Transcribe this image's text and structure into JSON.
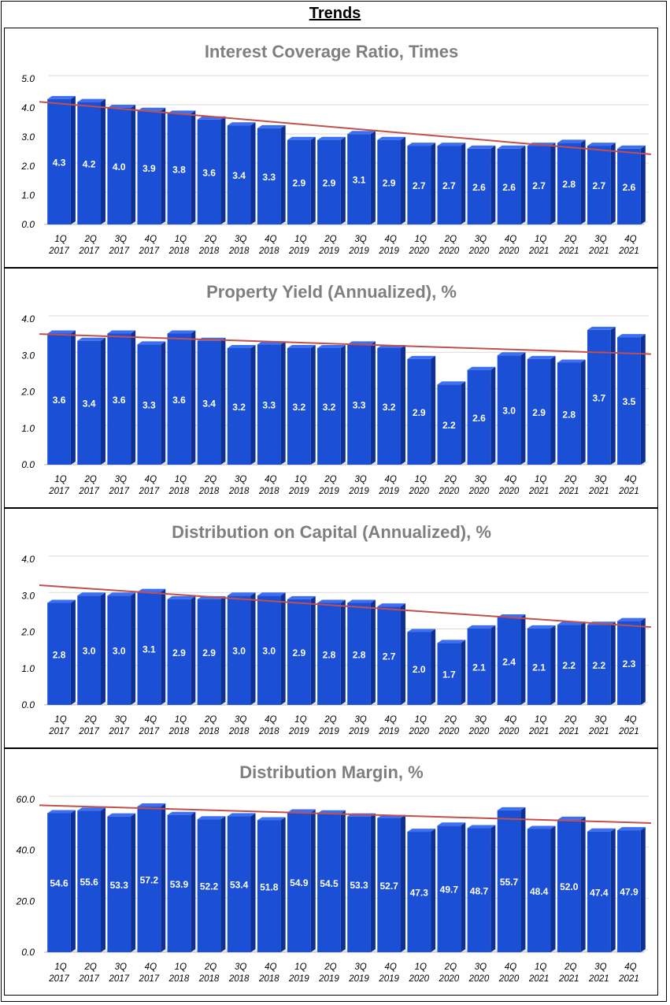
{
  "page": {
    "title": "Trends"
  },
  "colors": {
    "bar_front": "#1a4fd6",
    "bar_side": "#0e2f94",
    "bar_top": "#3d6ff0",
    "trend": "#c0504d",
    "grid": "#d9d9d9",
    "floor": "#e6e6e6",
    "title": "#7f7f7f"
  },
  "chart_data": [
    {
      "type": "bar",
      "title": "Interest Coverage Ratio, Times",
      "categories": [
        "1Q 2017",
        "2Q 2017",
        "3Q 2017",
        "4Q 2017",
        "1Q 2018",
        "2Q 2018",
        "3Q 2018",
        "4Q 2018",
        "1Q 2019",
        "2Q 2019",
        "3Q 2019",
        "4Q 2019",
        "1Q 2020",
        "2Q 2020",
        "3Q 2020",
        "4Q 2020",
        "1Q 2021",
        "2Q 2021",
        "3Q 2021",
        "4Q 2021"
      ],
      "values": [
        4.3,
        4.2,
        4.0,
        3.9,
        3.8,
        3.6,
        3.4,
        3.3,
        2.9,
        2.9,
        3.1,
        2.9,
        2.7,
        2.7,
        2.6,
        2.6,
        2.7,
        2.8,
        2.7,
        2.6
      ],
      "labels": [
        "4.3",
        "4.2",
        "4.0",
        "3.9",
        "3.8",
        "3.6",
        "3.4",
        "3.3",
        "2.9",
        "2.9",
        "3.1",
        "2.9",
        "2.7",
        "2.7",
        "2.6",
        "2.6",
        "2.7",
        "2.8",
        "2.7",
        "2.6"
      ],
      "yticks": [
        "0.0",
        "1.0",
        "2.0",
        "3.0",
        "4.0",
        "5.0"
      ],
      "ylim": [
        0,
        5
      ],
      "trendline": [
        4.1,
        2.3
      ],
      "grid": true,
      "xlabel": "",
      "ylabel": ""
    },
    {
      "type": "bar",
      "title": "Property Yield (Annualized), %",
      "categories": [
        "1Q 2017",
        "2Q 2017",
        "3Q 2017",
        "4Q 2017",
        "1Q 2018",
        "2Q 2018",
        "3Q 2018",
        "4Q 2018",
        "1Q 2019",
        "2Q 2019",
        "3Q 2019",
        "4Q 2019",
        "1Q 2020",
        "2Q 2020",
        "3Q 2020",
        "4Q 2020",
        "1Q 2021",
        "2Q 2021",
        "3Q 2021",
        "4Q 2021"
      ],
      "values": [
        3.6,
        3.4,
        3.6,
        3.3,
        3.6,
        3.4,
        3.2,
        3.3,
        3.2,
        3.2,
        3.3,
        3.2,
        2.9,
        2.2,
        2.6,
        3.0,
        2.9,
        2.8,
        3.7,
        3.5
      ],
      "labels": [
        "3.6",
        "3.4",
        "3.6",
        "3.3",
        "3.6",
        "3.4",
        "3.2",
        "3.3",
        "3.2",
        "3.2",
        "3.3",
        "3.2",
        "2.9",
        "2.2",
        "2.6",
        "3.0",
        "2.9",
        "2.8",
        "3.7",
        "3.5"
      ],
      "yticks": [
        "0.0",
        "1.0",
        "2.0",
        "3.0",
        "4.0"
      ],
      "ylim": [
        0,
        4
      ],
      "trendline": [
        3.5,
        2.95
      ],
      "grid": true,
      "xlabel": "",
      "ylabel": ""
    },
    {
      "type": "bar",
      "title": "Distribution on Capital (Annualized), %",
      "categories": [
        "1Q 2017",
        "2Q 2017",
        "3Q 2017",
        "4Q 2017",
        "1Q 2018",
        "2Q 2018",
        "3Q 2018",
        "4Q 2018",
        "1Q 2019",
        "2Q 2019",
        "3Q 2019",
        "4Q 2019",
        "1Q 2020",
        "2Q 2020",
        "3Q 2020",
        "4Q 2020",
        "1Q 2021",
        "2Q 2021",
        "3Q 2021",
        "4Q 2021"
      ],
      "values": [
        2.8,
        3.0,
        3.0,
        3.1,
        2.9,
        2.9,
        3.0,
        3.0,
        2.9,
        2.8,
        2.8,
        2.7,
        2.0,
        1.7,
        2.1,
        2.4,
        2.1,
        2.2,
        2.2,
        2.3
      ],
      "labels": [
        "2.8",
        "3.0",
        "3.0",
        "3.1",
        "2.9",
        "2.9",
        "3.0",
        "3.0",
        "2.9",
        "2.8",
        "2.8",
        "2.7",
        "2.0",
        "1.7",
        "2.1",
        "2.4",
        "2.1",
        "2.2",
        "2.2",
        "2.3"
      ],
      "yticks": [
        "0.0",
        "1.0",
        "2.0",
        "3.0",
        "4.0"
      ],
      "ylim": [
        0,
        4
      ],
      "trendline": [
        3.2,
        2.05
      ],
      "grid": true,
      "xlabel": "",
      "ylabel": ""
    },
    {
      "type": "bar",
      "title": "Distribution Margin, %",
      "categories": [
        "1Q 2017",
        "2Q 2017",
        "3Q 2017",
        "4Q 2017",
        "1Q 2018",
        "2Q 2018",
        "3Q 2018",
        "4Q 2018",
        "1Q 2019",
        "2Q 2019",
        "3Q 2019",
        "4Q 2019",
        "1Q 2020",
        "2Q 2020",
        "3Q 2020",
        "4Q 2020",
        "1Q 2021",
        "2Q 2021",
        "3Q 2021",
        "4Q 2021"
      ],
      "values": [
        54.6,
        55.6,
        53.3,
        57.2,
        53.9,
        52.2,
        53.4,
        51.8,
        54.9,
        54.5,
        53.3,
        52.7,
        47.3,
        49.7,
        48.7,
        55.7,
        48.4,
        52.0,
        47.4,
        47.9
      ],
      "labels": [
        "54.6",
        "55.6",
        "53.3",
        "57.2",
        "53.9",
        "52.2",
        "53.4",
        "51.8",
        "54.9",
        "54.5",
        "53.3",
        "52.7",
        "47.3",
        "49.7",
        "48.7",
        "55.7",
        "48.4",
        "52.0",
        "47.4",
        "47.9"
      ],
      "yticks": [
        "0.0",
        "20.0",
        "40.0",
        "60.0"
      ],
      "ylim": [
        0,
        60
      ],
      "trendline": [
        56.5,
        49.5
      ],
      "grid": true,
      "xlabel": "",
      "ylabel": ""
    }
  ]
}
